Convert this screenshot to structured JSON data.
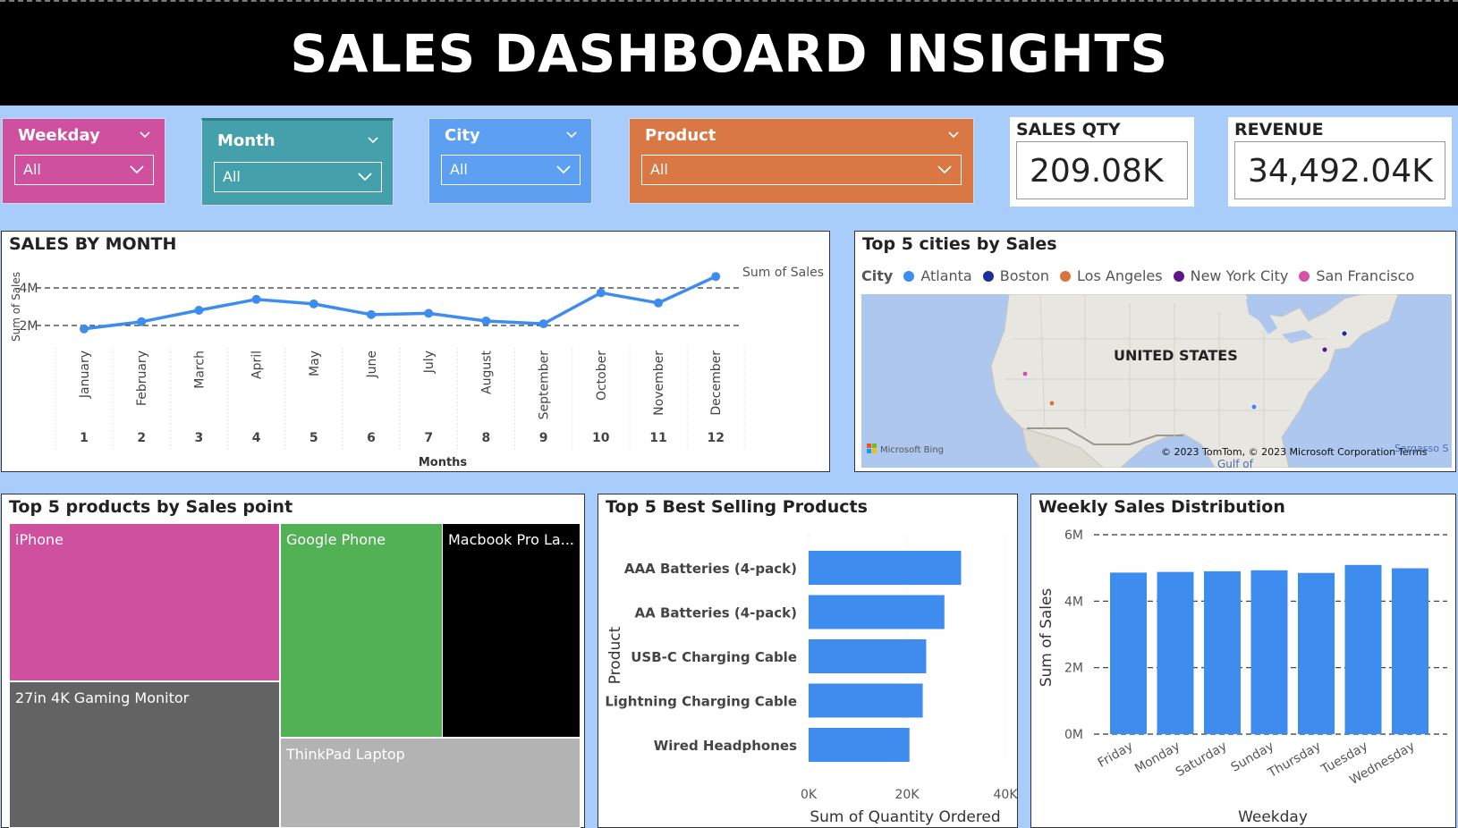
{
  "header": {
    "title": "SALES DASHBOARD INSIGHTS"
  },
  "slicers": {
    "weekday": {
      "label": "Weekday",
      "value": "All",
      "color": "#d050a0"
    },
    "month": {
      "label": "Month",
      "value": "All",
      "color": "#44a1ac"
    },
    "city": {
      "label": "City",
      "value": "All",
      "color": "#5da0f2"
    },
    "product": {
      "label": "Product",
      "value": "All",
      "color": "#d97745"
    }
  },
  "cards": {
    "sales_qty": {
      "label": "SALES QTY",
      "value": "209.08K"
    },
    "revenue": {
      "label": "REVENUE",
      "value": "34,492.04K"
    }
  },
  "sales_by_month": {
    "title": "SALES BY MONTH",
    "chart_data": {
      "type": "line",
      "title": "SALES BY MONTH",
      "xlabel": "Months",
      "ylabel": "Sum of Sales",
      "legend": "Sum of Sales",
      "y_ticks": [
        "2M",
        "4M"
      ],
      "categories": [
        "January",
        "February",
        "March",
        "April",
        "May",
        "June",
        "July",
        "August",
        "September",
        "October",
        "November",
        "December"
      ],
      "month_numbers": [
        "1",
        "2",
        "3",
        "4",
        "5",
        "6",
        "7",
        "8",
        "9",
        "10",
        "11",
        "12"
      ],
      "values": [
        1.82,
        2.2,
        2.81,
        3.39,
        3.15,
        2.58,
        2.65,
        2.24,
        2.09,
        3.74,
        3.2,
        4.61
      ],
      "ylim": [
        0,
        5
      ],
      "grid": true,
      "line_color": "#3e8ced"
    }
  },
  "top_cities": {
    "title": "Top 5 cities by Sales",
    "legend_title": "City",
    "legend": [
      {
        "name": "Atlanta",
        "color": "#3e8ced"
      },
      {
        "name": "Boston",
        "color": "#1d2d99"
      },
      {
        "name": "Los Angeles",
        "color": "#d9733c"
      },
      {
        "name": "New York City",
        "color": "#5b1788"
      },
      {
        "name": "San Francisco",
        "color": "#d653a8"
      }
    ],
    "map_label": "UNITED STATES",
    "map_brand": "Microsoft Bing",
    "map_copyright": "© 2023 TomTom, © 2023 Microsoft Corporation",
    "map_terms": "Terms",
    "map_corner": "Sargasso S",
    "map_gulf": "Gulf of"
  },
  "treemap": {
    "title": "Top 5 products by Sales point",
    "tiles": [
      {
        "name": "iPhone",
        "color": "#d050a0"
      },
      {
        "name": "27in 4K Gaming Monitor",
        "color": "#636363"
      },
      {
        "name": "Google Phone",
        "color": "#52b154"
      },
      {
        "name": "Macbook Pro La...",
        "color": "#000000"
      },
      {
        "name": "ThinkPad Laptop",
        "color": "#b3b3b3"
      }
    ]
  },
  "best_selling": {
    "title": "Top 5 Best Selling Products",
    "chart_data": {
      "type": "bar",
      "orientation": "horizontal",
      "title": "Top 5 Best Selling Products",
      "ylabel": "Product",
      "xlabel": "Sum of Quantity Ordered",
      "categories": [
        "AAA Batteries (4-pack)",
        "AA Batteries (4-pack)",
        "USB-C Charging Cable",
        "Lightning Charging Cable",
        "Wired Headphones"
      ],
      "values": [
        31000,
        27600,
        23900,
        23200,
        20500
      ],
      "x_ticks": [
        "0K",
        "20K",
        "40K"
      ],
      "xlim": [
        0,
        40000
      ],
      "bar_color": "#3e8ced"
    }
  },
  "weekly": {
    "title": "Weekly Sales Distribution",
    "chart_data": {
      "type": "bar",
      "title": "Weekly Sales Distribution",
      "xlabel": "Weekday",
      "ylabel": "Sum of Sales",
      "categories": [
        "Friday",
        "Monday",
        "Saturday",
        "Sunday",
        "Thursday",
        "Tuesday",
        "Wednesday"
      ],
      "values": [
        4.86,
        4.88,
        4.9,
        4.93,
        4.85,
        5.09,
        4.99
      ],
      "y_ticks": [
        "0M",
        "2M",
        "4M",
        "6M"
      ],
      "ylim": [
        0,
        6
      ],
      "grid": true,
      "bar_color": "#3e8ced"
    }
  }
}
